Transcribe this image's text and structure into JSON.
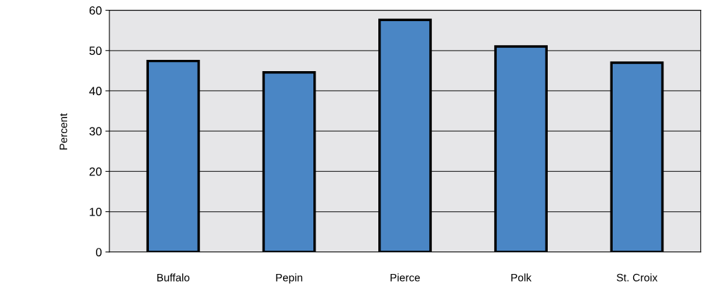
{
  "chart_data": {
    "type": "bar",
    "ylabel": "Percent",
    "categories": [
      "Buffalo",
      "Pepin",
      "Pierce",
      "Polk",
      "St. Croix"
    ],
    "values": [
      47.4,
      44.6,
      57.6,
      51.0,
      47.0
    ],
    "color": "#4a86c5",
    "ylim": [
      0,
      60
    ],
    "yticks": [
      0,
      10,
      20,
      30,
      40,
      50,
      60
    ],
    "grid": "y"
  }
}
